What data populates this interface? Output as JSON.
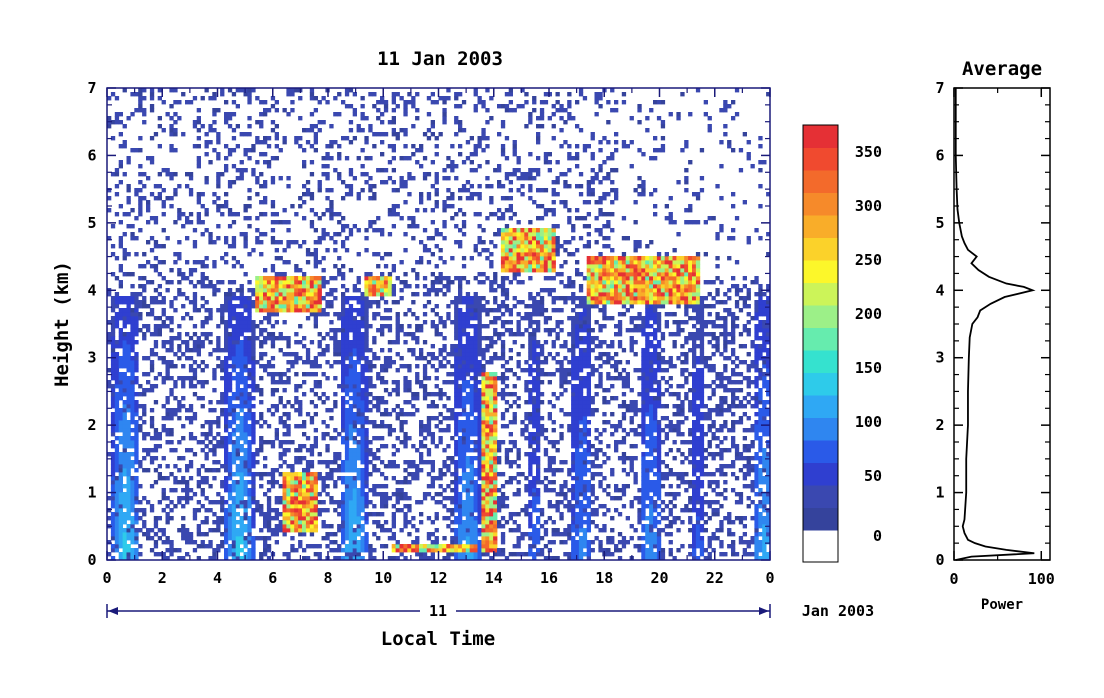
{
  "chart_data": [
    {
      "type": "heatmap",
      "title": "11 Jan 2003",
      "xlabel": "Local Time",
      "ylabel": "Height (km)",
      "xlim": [
        0,
        24
      ],
      "ylim": [
        0,
        7
      ],
      "x_ticks": [
        "0",
        "2",
        "4",
        "6",
        "8",
        "10",
        "12",
        "14",
        "16",
        "18",
        "20",
        "22",
        "0"
      ],
      "y_ticks": [
        "0",
        "1",
        "2",
        "3",
        "4",
        "5",
        "6",
        "7"
      ],
      "date_axis": {
        "day_label": "11",
        "month_label": "Jan 2003"
      },
      "colorbar": {
        "ticks": [
          "0",
          "50",
          "100",
          "150",
          "200",
          "250",
          "300",
          "350"
        ],
        "range": [
          0,
          375
        ],
        "colors": [
          "#ffffff",
          "#35439c",
          "#3a48b0",
          "#2f3fd0",
          "#2a5ae8",
          "#2f86f0",
          "#2fa8f4",
          "#2ecbea",
          "#35e2cf",
          "#66ecae",
          "#9cf088",
          "#ccf459",
          "#fcf72a",
          "#fbd22a",
          "#f9ad29",
          "#f68a2a",
          "#f36a2b",
          "#f04a2f",
          "#e53035"
        ]
      },
      "features": [
        {
          "kind": "cloud_layer",
          "x_range": [
            5.3,
            7.8
          ],
          "height_km": [
            3.7,
            4.2
          ],
          "max_value": 380
        },
        {
          "kind": "cloud_layer",
          "x_range": [
            9.3,
            10.3
          ],
          "height_km": [
            3.9,
            4.2
          ],
          "max_value": 380
        },
        {
          "kind": "cloud_layer",
          "x_range": [
            14.3,
            16.3
          ],
          "height_km": [
            4.3,
            4.9
          ],
          "max_value": 380
        },
        {
          "kind": "cloud_layer",
          "x_range": [
            17.3,
            21.5
          ],
          "height_km": [
            3.8,
            4.5
          ],
          "max_value": 380
        },
        {
          "kind": "low_cloud",
          "x_range": [
            10.3,
            13.4
          ],
          "height_km": [
            0.1,
            0.25
          ],
          "max_value": 380
        },
        {
          "kind": "low_cloud",
          "x_range": [
            6.3,
            7.6
          ],
          "height_km": [
            0.4,
            1.3
          ],
          "max_value": 380
        },
        {
          "kind": "rising_layer",
          "x_range": [
            13.5,
            14.1
          ],
          "height_km": [
            0.1,
            2.8
          ],
          "max_value": 380
        }
      ]
    },
    {
      "type": "line",
      "title": "Average",
      "xlabel": "Power",
      "ylabel": "",
      "xlim": [
        0,
        110
      ],
      "ylim": [
        0,
        7
      ],
      "x_ticks": [
        "0",
        "100"
      ],
      "y_ticks": [
        "0",
        "1",
        "2",
        "3",
        "4",
        "5",
        "6",
        "7"
      ],
      "series": [
        {
          "y": [
            0.0,
            0.05,
            0.1,
            0.15,
            0.2,
            0.25,
            0.3,
            0.4,
            0.5,
            0.6,
            0.8,
            1.0,
            1.5,
            2.0,
            2.5,
            3.0,
            3.3,
            3.5,
            3.6,
            3.7,
            3.8,
            3.9,
            4.0,
            4.05,
            4.1,
            4.2,
            4.3,
            4.4,
            4.5,
            4.6,
            4.7,
            4.8,
            5.0,
            5.2,
            5.5,
            6.0,
            6.5,
            7.0
          ],
          "x": [
            2,
            20,
            92,
            60,
            36,
            24,
            16,
            12,
            10,
            12,
            13,
            14,
            14,
            16,
            16,
            17,
            18,
            21,
            27,
            30,
            42,
            58,
            90,
            80,
            60,
            40,
            28,
            20,
            26,
            16,
            12,
            9,
            6,
            4,
            3,
            2,
            2,
            2
          ]
        }
      ]
    }
  ]
}
